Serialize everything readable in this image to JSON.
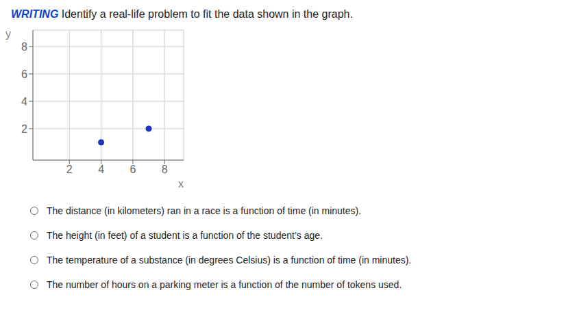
{
  "chart_data": {
    "type": "scatter",
    "title": "WRITING Identify a real-life problem to fit the data shown in the graph.",
    "x_label": "x",
    "y_label": "y",
    "x": [
      4,
      7
    ],
    "values": [
      1,
      2
    ],
    "color": "#2233bb",
    "xlim": [
      -0.3,
      9.2
    ],
    "ylim": [
      -0.3,
      9.2
    ],
    "xticks": [
      2,
      4,
      6,
      8
    ],
    "yticks": [
      2,
      4,
      6,
      8
    ],
    "grid": true,
    "annotations": [
      "The distance (in kilometers) ran in a race is a function of time (in minutes).",
      "The height (in feet) of a student is a function of the student’s age.",
      "The temperature of a substance (in degrees Celsius) is a function of time (in minutes).",
      "The number of hours on a parking meter is a function of the number of tokens used."
    ]
  }
}
